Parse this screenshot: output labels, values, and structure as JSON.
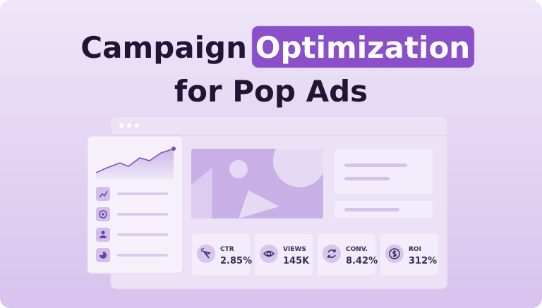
{
  "header": {
    "title_start": "Campaign",
    "title_highlight": "Optimization",
    "title_end": "for Pop Ads"
  },
  "metrics": [
    {
      "label": "CTR",
      "value": "2.85%"
    },
    {
      "label": "VIEWS",
      "value": "145K"
    },
    {
      "label": "CONV.",
      "value": "8.42%"
    },
    {
      "label": "ROI",
      "value": "312%"
    }
  ]
}
